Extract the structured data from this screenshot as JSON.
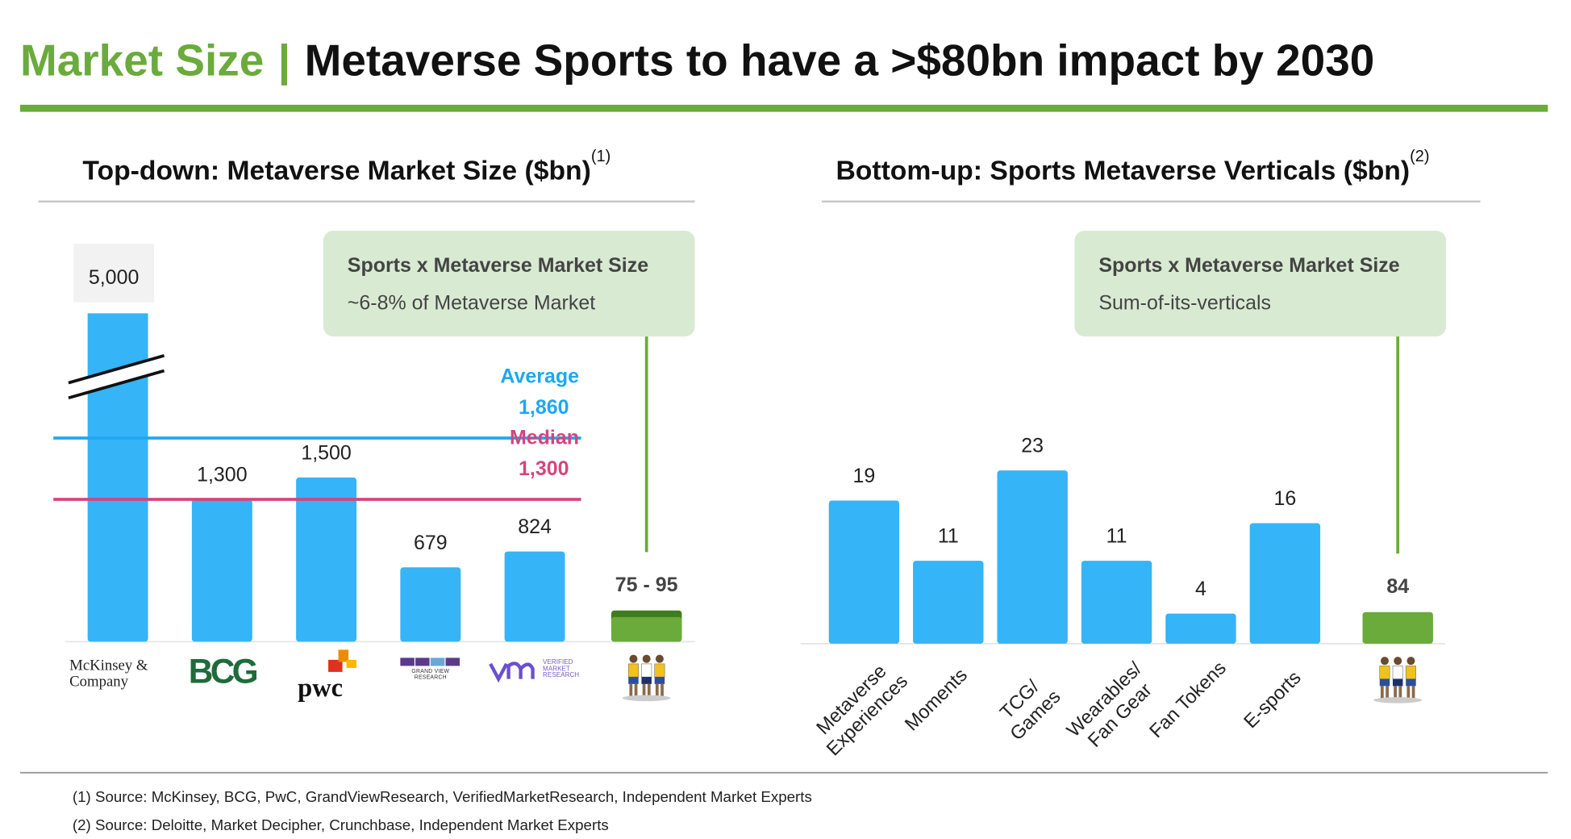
{
  "header": {
    "title_highlight": "Market Size",
    "separator": "|",
    "title": "Metaverse Sports to have a >$80bn impact by 2030"
  },
  "chart_data": [
    {
      "type": "bar",
      "title": "Top-down: Metaverse Market Size ($bn)",
      "title_note": "(1)",
      "categories": [
        "McKinsey & Company",
        "BCG",
        "pwc",
        "GRAND VIEW RESEARCH",
        "VERIFIED MARKET RESEARCH"
      ],
      "values": [
        5000,
        1300,
        1500,
        679,
        824
      ],
      "value_labels": [
        "5,000",
        "1,300",
        "1,500",
        "679",
        "824"
      ],
      "color": "#35b4f7",
      "ylim": [
        0,
        3000
      ],
      "axis_break": true,
      "reference_lines": [
        {
          "name": "Average",
          "value": 1860,
          "label": "1,860",
          "color": "#1fa7f0"
        },
        {
          "name": "Median",
          "value": 1300,
          "label": "1,300",
          "color": "#d4457f"
        }
      ],
      "callout": {
        "title": "Sports x Metaverse Market Size",
        "text": "~6-8% of Metaverse Market"
      },
      "highlight": {
        "values": [
          75,
          95
        ],
        "value_label": "75 - 95",
        "colors": [
          "#6aab3b",
          "#3e7d1e"
        ],
        "ylim": [
          0,
          1000
        ]
      }
    },
    {
      "type": "bar",
      "title": "Bottom-up: Sports Metaverse Verticals ($bn)",
      "title_note": "(2)",
      "categories": [
        "Metaverse Experiences",
        "Moments",
        "TCG/ Games",
        "Wearables/ Fan Gear",
        "Fan Tokens",
        "E-sports"
      ],
      "values": [
        19,
        11,
        23,
        11,
        4,
        16
      ],
      "color": "#35b4f7",
      "ylim": [
        0,
        50
      ],
      "callout": {
        "title": "Sports x Metaverse Market Size",
        "text": "Sum-of-its-verticals"
      },
      "highlight": {
        "value": 84,
        "color": "#6aab3b",
        "ylim": [
          0,
          1000
        ]
      }
    }
  ],
  "footnotes": [
    "(1) Source: McKinsey, BCG, PwC, GrandViewResearch, VerifiedMarketResearch, Independent Market Experts",
    "(2) Source: Deloitte, Market Decipher, Crunchbase, Independent Market Experts"
  ]
}
